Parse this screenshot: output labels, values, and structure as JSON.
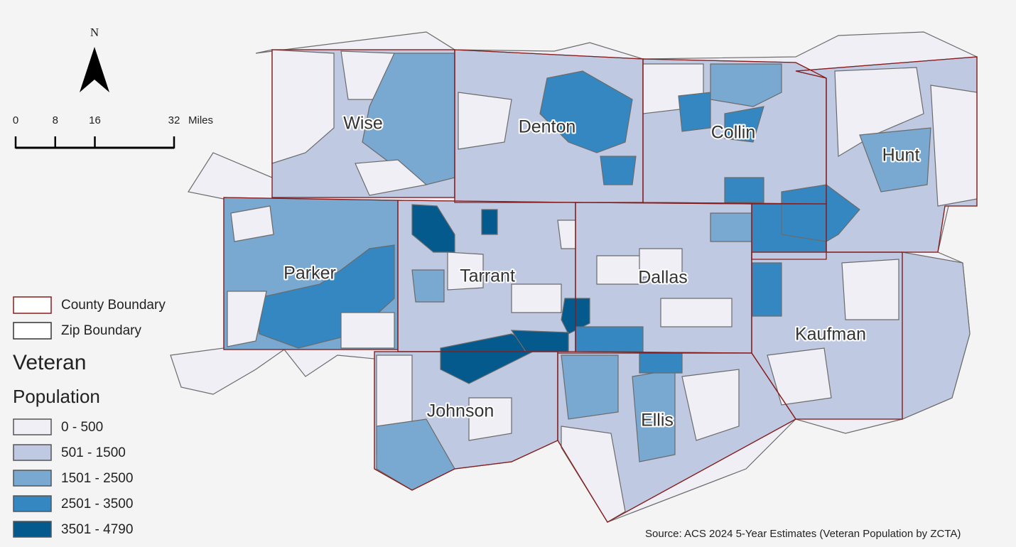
{
  "north_arrow": {
    "label": "N"
  },
  "scale_bar": {
    "ticks": [
      0,
      8,
      16,
      32
    ],
    "unit": "Miles"
  },
  "legend": {
    "boundaries": [
      {
        "label": "County Boundary",
        "color": "#8a1c1c"
      },
      {
        "label": "Zip Boundary",
        "color": "#333333"
      }
    ],
    "title": [
      "Veteran",
      "Population"
    ],
    "classes": [
      {
        "label": "0 - 500",
        "color": "#f1eff6"
      },
      {
        "label": "501 - 1500",
        "color": "#bfc9e2"
      },
      {
        "label": "1501 - 2500",
        "color": "#79a8d0"
      },
      {
        "label": "2501 - 3500",
        "color": "#3487c0"
      },
      {
        "label": "3501 - 4790",
        "color": "#045a8d"
      }
    ]
  },
  "counties": [
    {
      "name": "Wise"
    },
    {
      "name": "Denton"
    },
    {
      "name": "Collin"
    },
    {
      "name": "Hunt"
    },
    {
      "name": "Parker"
    },
    {
      "name": "Tarrant"
    },
    {
      "name": "Dallas"
    },
    {
      "name": "Kaufman"
    },
    {
      "name": "Johnson"
    },
    {
      "name": "Ellis"
    }
  ],
  "source": "Source: ACS 2024 5-Year Estimates (Veteran Population by ZCTA)"
}
